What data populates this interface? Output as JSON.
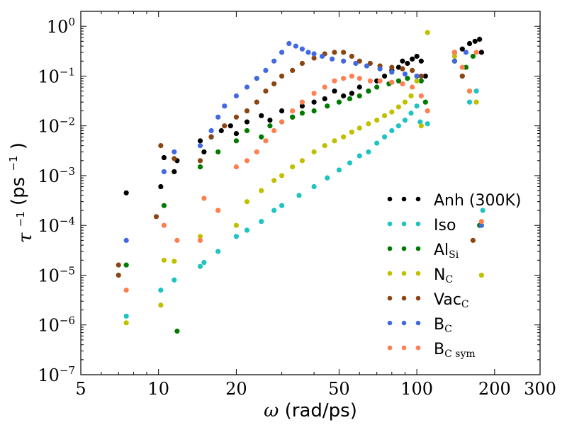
{
  "chart_data": {
    "type": "scatter",
    "xscale": "log",
    "yscale": "log",
    "xlim": [
      5,
      300
    ],
    "ylim": [
      1e-07,
      2
    ],
    "xlabel_symbol": "ω",
    "xlabel_unit": "(rad/ps)",
    "ylabel_symbol": "τ",
    "ylabel_exp": "−1",
    "ylabel_unit_base": "(ps",
    "ylabel_unit_exp": "−1",
    "ylabel_unit_close": ")",
    "xticks": [
      {
        "value": 5,
        "label": "5"
      },
      {
        "value": 10,
        "label": "10"
      },
      {
        "value": 20,
        "label": "20"
      },
      {
        "value": 50,
        "label": "50"
      },
      {
        "value": 100,
        "label": "100"
      },
      {
        "value": 200,
        "label": "200"
      },
      {
        "value": 300,
        "label": "300"
      }
    ],
    "yticks": [
      {
        "value": 1e-07,
        "base": "10",
        "exp": "−7"
      },
      {
        "value": 1e-06,
        "base": "10",
        "exp": "−6"
      },
      {
        "value": 1e-05,
        "base": "10",
        "exp": "−5"
      },
      {
        "value": 0.0001,
        "base": "10",
        "exp": "−4"
      },
      {
        "value": 0.001,
        "base": "10",
        "exp": "−3"
      },
      {
        "value": 0.01,
        "base": "10",
        "exp": "−2"
      },
      {
        "value": 0.1,
        "base": "10",
        "exp": "−1"
      },
      {
        "value": 1,
        "base": "10",
        "exp": "0"
      }
    ],
    "legend_position": "lower-right",
    "series": [
      {
        "name": "Anh (300K)",
        "sub": "",
        "color": "#000000",
        "points": [
          [
            7.5,
            0.00045
          ],
          [
            10.5,
            0.0023
          ],
          [
            10.2,
            0.0006
          ],
          [
            11.8,
            0.002
          ],
          [
            11.5,
            0.0012
          ],
          [
            14.5,
            0.005
          ],
          [
            15,
            0.003
          ],
          [
            16,
            0.006
          ],
          [
            17.5,
            0.008
          ],
          [
            19,
            0.01
          ],
          [
            20,
            0.007
          ],
          [
            22,
            0.012
          ],
          [
            25,
            0.016
          ],
          [
            27,
            0.013
          ],
          [
            30,
            0.02
          ],
          [
            33,
            0.015
          ],
          [
            36,
            0.025
          ],
          [
            40,
            0.03
          ],
          [
            44,
            0.035
          ],
          [
            48,
            0.05
          ],
          [
            52,
            0.04
          ],
          [
            56,
            0.045
          ],
          [
            60,
            0.06
          ],
          [
            65,
            0.05
          ],
          [
            70,
            0.08
          ],
          [
            75,
            0.1
          ],
          [
            80,
            0.13
          ],
          [
            85,
            0.15
          ],
          [
            88,
            0.2
          ],
          [
            92,
            0.18
          ],
          [
            96,
            0.22
          ],
          [
            100,
            0.25
          ],
          [
            104,
            0.2
          ],
          [
            108,
            0.1
          ],
          [
            140,
            0.3
          ],
          [
            150,
            0.35
          ],
          [
            160,
            0.45
          ],
          [
            168,
            0.5
          ],
          [
            175,
            0.55
          ],
          [
            178,
            0.3
          ]
        ]
      },
      {
        "name": "Iso",
        "sub": "",
        "color": "#1ec3c3",
        "points": [
          [
            7.5,
            1.5e-06
          ],
          [
            10.2,
            5e-06
          ],
          [
            11.5,
            8e-06
          ],
          [
            14.5,
            1.5e-05
          ],
          [
            15,
            1.8e-05
          ],
          [
            17,
            3e-05
          ],
          [
            20,
            6e-05
          ],
          [
            22,
            8e-05
          ],
          [
            25,
            0.00012
          ],
          [
            28,
            0.0002
          ],
          [
            30,
            0.00025
          ],
          [
            35,
            0.0004
          ],
          [
            40,
            0.0006
          ],
          [
            45,
            0.0009
          ],
          [
            50,
            0.0013
          ],
          [
            55,
            0.0018
          ],
          [
            60,
            0.0025
          ],
          [
            65,
            0.003
          ],
          [
            70,
            0.0045
          ],
          [
            75,
            0.006
          ],
          [
            80,
            0.008
          ],
          [
            85,
            0.01
          ],
          [
            90,
            0.013
          ],
          [
            95,
            0.018
          ],
          [
            100,
            0.025
          ],
          [
            103,
            0.012
          ],
          [
            110,
            0.011
          ],
          [
            140,
            0.3
          ],
          [
            150,
            0.1
          ],
          [
            160,
            0.03
          ],
          [
            170,
            0.05
          ],
          [
            180,
            0.0002
          ]
        ]
      },
      {
        "name": "Al",
        "sub": "Si",
        "color": "#007a00",
        "points": [
          [
            7.5,
            1.6e-05
          ],
          [
            10.5,
            0.00025
          ],
          [
            11.8,
            7.5e-07
          ],
          [
            14.5,
            0.0015
          ],
          [
            17,
            0.003
          ],
          [
            20,
            0.005
          ],
          [
            22,
            0.008
          ],
          [
            25,
            0.006
          ],
          [
            27,
            0.01
          ],
          [
            30,
            0.012
          ],
          [
            33,
            0.015
          ],
          [
            36,
            0.018
          ],
          [
            40,
            0.02
          ],
          [
            45,
            0.025
          ],
          [
            50,
            0.03
          ],
          [
            55,
            0.035
          ],
          [
            60,
            0.04
          ],
          [
            65,
            0.05
          ],
          [
            70,
            0.06
          ],
          [
            78,
            0.07
          ],
          [
            85,
            0.08
          ],
          [
            92,
            0.09
          ],
          [
            100,
            0.1
          ],
          [
            104,
            0.08
          ],
          [
            108,
            0.03
          ],
          [
            140,
            0.2
          ],
          [
            155,
            0.15
          ],
          [
            165,
            0.25
          ],
          [
            175,
            0.0001
          ]
        ]
      },
      {
        "name": "N",
        "sub": "C",
        "color": "#c0c000",
        "points": [
          [
            7.5,
            1.1e-06
          ],
          [
            10.2,
            2.5e-06
          ],
          [
            10.5,
            2e-05
          ],
          [
            11.5,
            1.9e-05
          ],
          [
            14.5,
            6e-05
          ],
          [
            17,
            0.0002
          ],
          [
            20,
            0.0001
          ],
          [
            22,
            0.0003
          ],
          [
            25,
            0.0005
          ],
          [
            28,
            0.0008
          ],
          [
            30,
            0.001
          ],
          [
            33,
            0.0015
          ],
          [
            36,
            0.002
          ],
          [
            40,
            0.003
          ],
          [
            44,
            0.004
          ],
          [
            48,
            0.005
          ],
          [
            52,
            0.006
          ],
          [
            56,
            0.0075
          ],
          [
            60,
            0.009
          ],
          [
            65,
            0.011
          ],
          [
            70,
            0.013
          ],
          [
            75,
            0.016
          ],
          [
            80,
            0.019
          ],
          [
            85,
            0.024
          ],
          [
            90,
            0.03
          ],
          [
            95,
            0.04
          ],
          [
            100,
            0.08
          ],
          [
            104,
            0.01
          ],
          [
            110,
            0.75
          ],
          [
            140,
            0.25
          ],
          [
            150,
            0.1
          ],
          [
            160,
            0.05
          ],
          [
            170,
            0.03
          ],
          [
            178,
            1e-05
          ]
        ]
      },
      {
        "name": "Vac",
        "sub": "C",
        "color": "#8b4513",
        "points": [
          [
            7,
            1.6e-05
          ],
          [
            7.0,
            1e-05
          ],
          [
            9.8,
            0.00015
          ],
          [
            10.2,
            0.004
          ],
          [
            11.5,
            0.0022
          ],
          [
            14.5,
            0.002
          ],
          [
            16,
            0.006
          ],
          [
            18,
            0.01
          ],
          [
            20,
            0.015
          ],
          [
            22,
            0.02
          ],
          [
            24,
            0.03
          ],
          [
            26,
            0.05
          ],
          [
            28,
            0.07
          ],
          [
            30,
            0.1
          ],
          [
            33,
            0.13
          ],
          [
            36,
            0.18
          ],
          [
            40,
            0.23
          ],
          [
            44,
            0.28
          ],
          [
            48,
            0.3
          ],
          [
            52,
            0.3
          ],
          [
            56,
            0.25
          ],
          [
            60,
            0.2
          ],
          [
            66,
            0.18
          ],
          [
            72,
            0.16
          ],
          [
            80,
            0.15
          ],
          [
            88,
            0.14
          ],
          [
            96,
            0.13
          ],
          [
            104,
            0.1
          ],
          [
            140,
            0.2
          ],
          [
            150,
            0.1
          ],
          [
            165,
            5e-05
          ]
        ]
      },
      {
        "name": "B",
        "sub": "C",
        "color": "#4169e1",
        "points": [
          [
            7.5,
            5e-05
          ],
          [
            10.5,
            0.0012
          ],
          [
            11.5,
            0.003
          ],
          [
            14.5,
            0.004
          ],
          [
            16,
            0.008
          ],
          [
            17,
            0.015
          ],
          [
            18,
            0.025
          ],
          [
            20,
            0.04
          ],
          [
            22,
            0.06
          ],
          [
            24,
            0.09
          ],
          [
            26,
            0.13
          ],
          [
            28,
            0.2
          ],
          [
            30,
            0.3
          ],
          [
            32,
            0.45
          ],
          [
            34,
            0.4
          ],
          [
            36,
            0.35
          ],
          [
            38,
            0.3
          ],
          [
            40,
            0.28
          ],
          [
            43,
            0.25
          ],
          [
            47,
            0.22
          ],
          [
            52,
            0.2
          ],
          [
            58,
            0.18
          ],
          [
            64,
            0.16
          ],
          [
            72,
            0.14
          ],
          [
            80,
            0.12
          ],
          [
            90,
            0.11
          ],
          [
            100,
            0.1
          ],
          [
            140,
            0.2
          ],
          [
            155,
            0.3
          ],
          [
            178,
            0.0001
          ]
        ]
      },
      {
        "name": "B",
        "sub": "C sym",
        "color": "#ff7f50",
        "points": [
          [
            7.5,
            5e-06
          ],
          [
            10.5,
            0.0001
          ],
          [
            11.8,
            5e-05
          ],
          [
            14.5,
            5e-05
          ],
          [
            15,
            0.00035
          ],
          [
            17,
            0.0002
          ],
          [
            20,
            0.0015
          ],
          [
            22,
            0.002
          ],
          [
            24,
            0.003
          ],
          [
            26,
            0.005
          ],
          [
            28,
            0.008
          ],
          [
            30,
            0.012
          ],
          [
            33,
            0.02
          ],
          [
            36,
            0.03
          ],
          [
            40,
            0.045
          ],
          [
            44,
            0.06
          ],
          [
            48,
            0.08
          ],
          [
            52,
            0.09
          ],
          [
            56,
            0.1
          ],
          [
            60,
            0.09
          ],
          [
            66,
            0.08
          ],
          [
            72,
            0.08
          ],
          [
            80,
            0.075
          ],
          [
            88,
            0.07
          ],
          [
            96,
            0.06
          ],
          [
            104,
            0.04
          ],
          [
            110,
            0.02
          ],
          [
            140,
            0.3
          ],
          [
            150,
            0.15
          ],
          [
            160,
            0.05
          ],
          [
            170,
            0.3
          ],
          [
            178,
            0.00012
          ]
        ]
      }
    ]
  }
}
